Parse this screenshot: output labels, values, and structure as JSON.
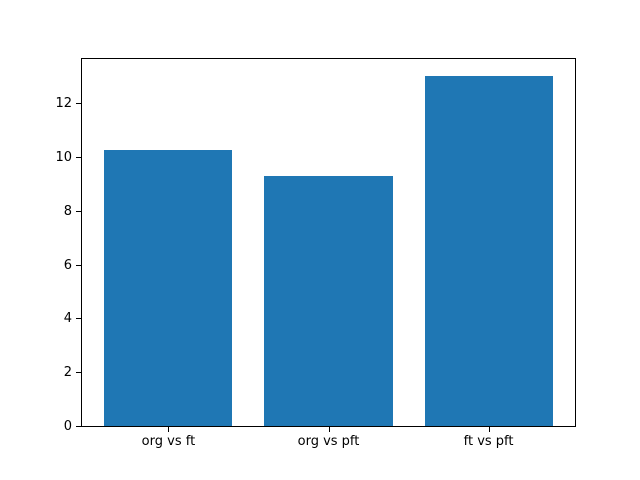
{
  "figure": {
    "background": "#ffffff",
    "frame_color": "#000000",
    "text_color": "#000000"
  },
  "chart_data": {
    "type": "bar",
    "title": "",
    "xlabel": "",
    "ylabel": "",
    "categories": [
      "org vs ft",
      "org vs pft",
      "ft vs pft"
    ],
    "values": [
      10.25,
      9.3,
      13.0
    ],
    "bar_color": "#1f77b4",
    "bar_width": 0.8,
    "xlim": [
      -0.54,
      2.54
    ],
    "ylim": [
      0,
      13.65
    ],
    "yticks": [
      0,
      2,
      4,
      6,
      8,
      10,
      12
    ],
    "grid": false,
    "legend": null
  }
}
